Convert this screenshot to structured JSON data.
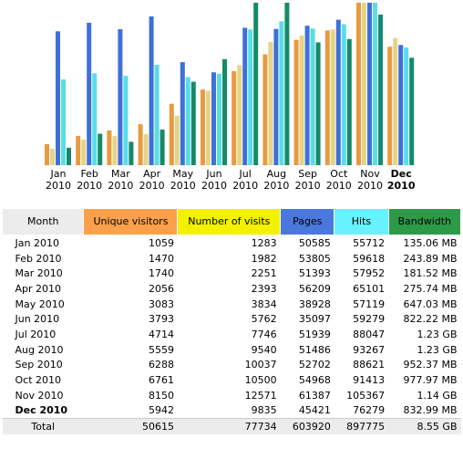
{
  "chart_data": {
    "type": "bar",
    "categories": [
      "Jan 2010",
      "Feb 2010",
      "Mar 2010",
      "Apr 2010",
      "May 2010",
      "Jun 2010",
      "Jul 2010",
      "Aug 2010",
      "Sep 2010",
      "Oct 2010",
      "Nov 2010",
      "Dec 2010"
    ],
    "series": [
      {
        "name": "Unique visitors",
        "color": "#e89a40",
        "header_color": "#fda04c",
        "values": [
          1059,
          1470,
          1740,
          2056,
          3083,
          3793,
          4714,
          5559,
          6288,
          6761,
          8150,
          5942
        ]
      },
      {
        "name": "Number of visits",
        "color": "#e6d486",
        "header_color": "#f2f200",
        "values": [
          1283,
          1982,
          2251,
          2393,
          3834,
          5762,
          7746,
          9540,
          10037,
          10500,
          12571,
          9835
        ]
      },
      {
        "name": "Pages",
        "color": "#3f6fd8",
        "header_color": "#4a78dc",
        "values": [
          50585,
          53805,
          51393,
          56209,
          38928,
          35097,
          51939,
          51486,
          52702,
          54968,
          61387,
          45421
        ]
      },
      {
        "name": "Hits",
        "color": "#58dde8",
        "header_color": "#66f2ff",
        "values": [
          55712,
          59618,
          57952,
          65101,
          57119,
          59279,
          88047,
          93267,
          88621,
          91413,
          105367,
          76279
        ]
      },
      {
        "name": "Bandwidth",
        "color": "#168a68",
        "header_color": "#2e9a48",
        "values": [
          135.06,
          243.89,
          181.52,
          275.74,
          647.03,
          822.22,
          1259.52,
          1259.52,
          952.37,
          977.97,
          1167.36,
          832.99
        ],
        "value_labels": [
          "135.06 MB",
          "243.89 MB",
          "181.52 MB",
          "275.74 MB",
          "647.03 MB",
          "822.22 MB",
          "1.23 GB",
          "1.23 GB",
          "952.37 MB",
          "977.97 MB",
          "1.14 GB",
          "832.99 MB"
        ]
      }
    ]
  },
  "table": {
    "month_header": "Month",
    "total_label": "Total",
    "totals": [
      50615,
      77734,
      603920,
      897775,
      "8.55 GB"
    ]
  }
}
